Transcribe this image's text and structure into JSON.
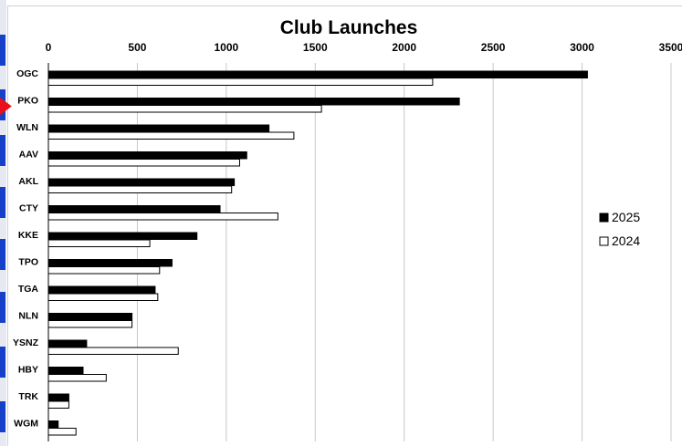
{
  "chart_data": {
    "type": "bar",
    "orientation": "horizontal",
    "title": "Club Launches",
    "xlabel": "",
    "ylabel": "",
    "xlim": [
      0,
      3500
    ],
    "x_ticks": [
      0,
      500,
      1000,
      1500,
      2000,
      2500,
      3000,
      3500
    ],
    "grid": true,
    "legend_position": "right",
    "categories": [
      "OGC",
      "PKO",
      "WLN",
      "AAV",
      "AKL",
      "CTY",
      "KKE",
      "TPO",
      "TGA",
      "NLN",
      "YSNZ",
      "HBY",
      "TRK",
      "WGM"
    ],
    "series": [
      {
        "name": "2025",
        "fill": "#000000",
        "values": [
          3030,
          2310,
          1240,
          1115,
          1045,
          965,
          835,
          695,
          600,
          470,
          215,
          195,
          115,
          55
        ]
      },
      {
        "name": "2024",
        "fill": "#ffffff",
        "values": [
          2160,
          1535,
          1380,
          1075,
          1030,
          1290,
          570,
          625,
          615,
          470,
          730,
          325,
          115,
          155
        ]
      }
    ],
    "highlight": {
      "category": "PKO",
      "marker": "red-arrow",
      "color": "#e8101a"
    }
  },
  "colors": {
    "grid": "#c8c8c8",
    "bar_outline": "#000000",
    "edge_tab": "#1740c8"
  }
}
